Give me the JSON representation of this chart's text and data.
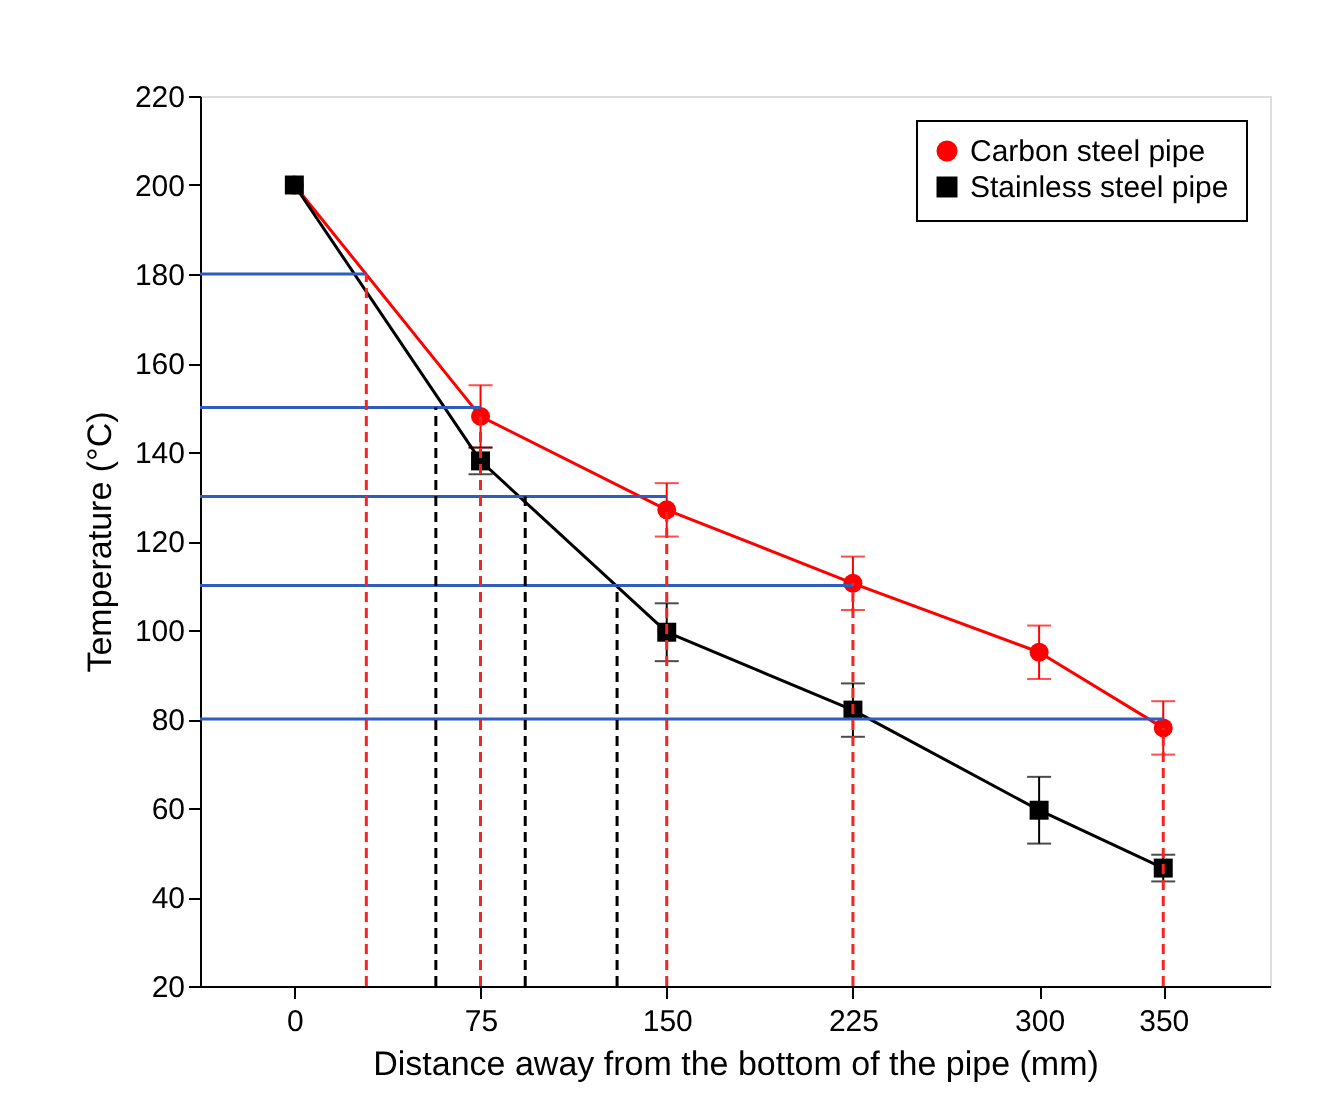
{
  "chart_data": {
    "type": "line",
    "xlabel": "Distance away from the bottom of the pipe (mm)",
    "ylabel": "Temperature (°C)",
    "xlim": [
      -38,
      393
    ],
    "ylim": [
      20,
      220
    ],
    "xticks": [
      0,
      75,
      150,
      225,
      300,
      350
    ],
    "yticks": [
      20,
      40,
      60,
      80,
      100,
      120,
      140,
      160,
      180,
      200,
      220
    ],
    "grid": false,
    "legend": "top right",
    "x": [
      0,
      75,
      150,
      225,
      300,
      350
    ],
    "series": [
      {
        "name": "Carbon steel pipe",
        "color": "#ff0000",
        "marker": "circle",
        "values": [
          200,
          148,
          127,
          110.5,
          95,
          78
        ],
        "errors": [
          null,
          7,
          6,
          6,
          6,
          6
        ]
      },
      {
        "name": "Stainless steel pipe",
        "color": "#000000",
        "marker": "square",
        "values": [
          200,
          138,
          99.5,
          82,
          59.5,
          46.5
        ],
        "errors": [
          null,
          3,
          6.5,
          6,
          7.5,
          3
        ]
      },
      {
        "color": "#2e5cc0",
        "marker": "none",
        "x": [
          -38,
          29
        ],
        "values": [
          180,
          180
        ]
      },
      {
        "color": "#2e5cc0",
        "marker": "none",
        "x": [
          -38,
          75
        ],
        "values": [
          150,
          150
        ]
      },
      {
        "color": "#2e5cc0",
        "marker": "none",
        "x": [
          -38,
          150
        ],
        "values": [
          130,
          130
        ]
      },
      {
        "color": "#2e5cc0",
        "marker": "none",
        "x": [
          -38,
          225
        ],
        "values": [
          110,
          110
        ]
      },
      {
        "color": "#2e5cc0",
        "marker": "none",
        "x": [
          -38,
          350
        ],
        "values": [
          80,
          80
        ]
      },
      {
        "color": "#ff2020",
        "marker": "none",
        "line_style": "dashed",
        "x": [
          29,
          29
        ],
        "values": [
          20,
          180
        ]
      },
      {
        "color": "#ff2020",
        "marker": "none",
        "line_style": "dashed",
        "x": [
          75,
          75
        ],
        "values": [
          20,
          148
        ]
      },
      {
        "color": "#ff2020",
        "marker": "none",
        "line_style": "dashed",
        "x": [
          150,
          150
        ],
        "values": [
          20,
          127
        ]
      },
      {
        "color": "#ff2020",
        "marker": "none",
        "line_style": "dashed",
        "x": [
          225,
          225
        ],
        "values": [
          20,
          110.5
        ]
      },
      {
        "color": "#ff2020",
        "marker": "none",
        "line_style": "dashed",
        "x": [
          350,
          350
        ],
        "values": [
          20,
          78
        ]
      },
      {
        "color": "#000000",
        "marker": "none",
        "line_style": "dashed",
        "x": [
          57,
          57
        ],
        "values": [
          20,
          150
        ]
      },
      {
        "color": "#000000",
        "marker": "none",
        "line_style": "dashed",
        "x": [
          93,
          93
        ],
        "values": [
          20,
          130
        ]
      },
      {
        "color": "#000000",
        "marker": "none",
        "line_style": "dashed",
        "x": [
          130,
          130
        ],
        "values": [
          20,
          110
        ]
      }
    ]
  }
}
